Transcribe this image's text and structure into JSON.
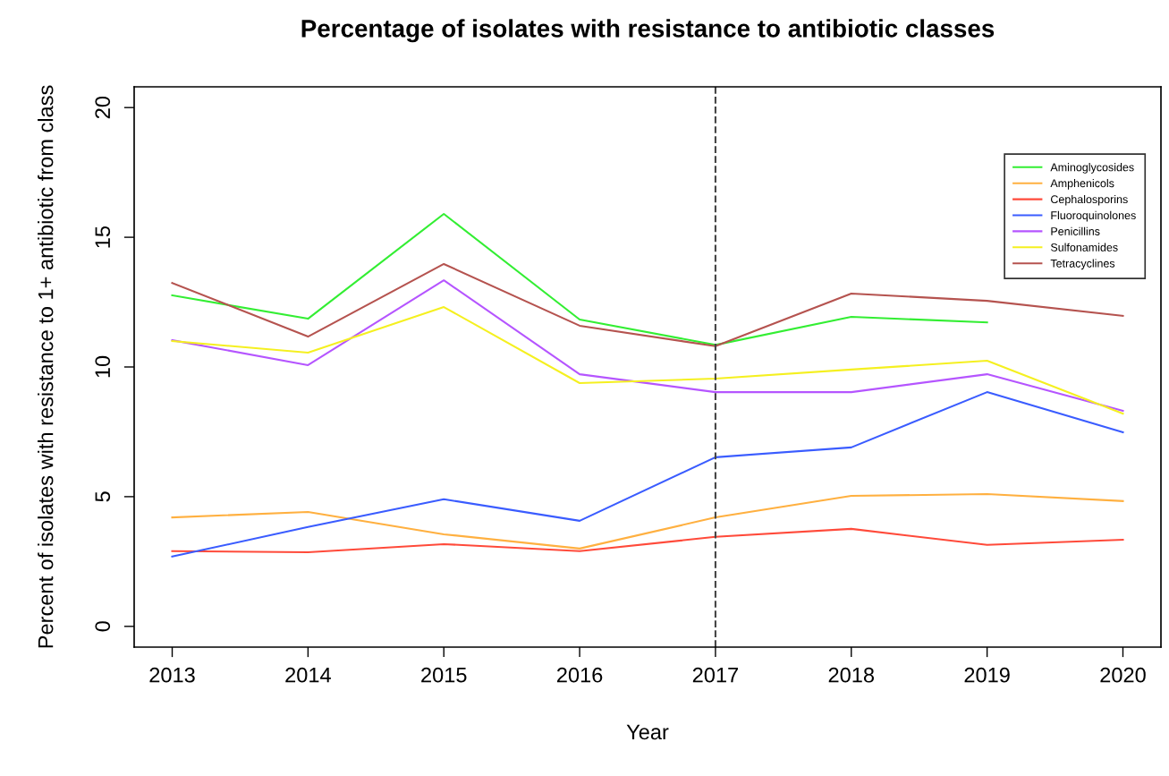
{
  "chart_data": {
    "type": "line",
    "title": "Percentage of isolates with resistance to antibiotic classes",
    "xlabel": "Year",
    "ylabel": "Percent of isolates with resistance to 1+ antibiotic from class",
    "x": [
      2013,
      2014,
      2015,
      2016,
      2017,
      2018,
      2019,
      2020
    ],
    "xlim": [
      2012.72,
      2020.28
    ],
    "xticks": [
      2013,
      2014,
      2015,
      2016,
      2017,
      2018,
      2019,
      2020
    ],
    "ylim": [
      -0.8,
      20.8
    ],
    "yticks": [
      0,
      5,
      10,
      15,
      20
    ],
    "grid": false,
    "legend": "top right",
    "line_style": "solid",
    "ref_lines": [
      {
        "axis": "x",
        "value": 2017,
        "color": "#444444",
        "line_style": "dashed"
      }
    ],
    "series": [
      {
        "name": "Aminoglycosides",
        "color": "#33ee33",
        "values": [
          12.76,
          11.86,
          15.9,
          11.83,
          10.85,
          11.93,
          11.72,
          null
        ]
      },
      {
        "name": "Amphenicols",
        "color": "#ffb040",
        "values": [
          4.2,
          4.41,
          3.55,
          3.0,
          4.2,
          5.03,
          5.1,
          4.83
        ]
      },
      {
        "name": "Cephalosporins",
        "color": "#ff4a3a",
        "values": [
          2.9,
          2.86,
          3.17,
          2.9,
          3.45,
          3.76,
          3.14,
          3.34
        ]
      },
      {
        "name": "Fluoroquinolones",
        "color": "#3a5cff",
        "values": [
          2.69,
          3.83,
          4.9,
          4.07,
          6.52,
          6.9,
          9.03,
          7.48
        ]
      },
      {
        "name": "Penicillins",
        "color": "#b555ff",
        "values": [
          11.03,
          10.07,
          13.34,
          9.72,
          9.03,
          9.03,
          9.72,
          8.31
        ]
      },
      {
        "name": "Sulfonamides",
        "color": "#f5f020",
        "values": [
          11.0,
          10.55,
          12.31,
          9.38,
          9.55,
          9.9,
          10.24,
          8.2
        ]
      },
      {
        "name": "Tetracyclines",
        "color": "#b5534f",
        "values": [
          13.24,
          11.17,
          13.97,
          11.59,
          10.8,
          12.83,
          12.55,
          11.97
        ]
      }
    ]
  }
}
